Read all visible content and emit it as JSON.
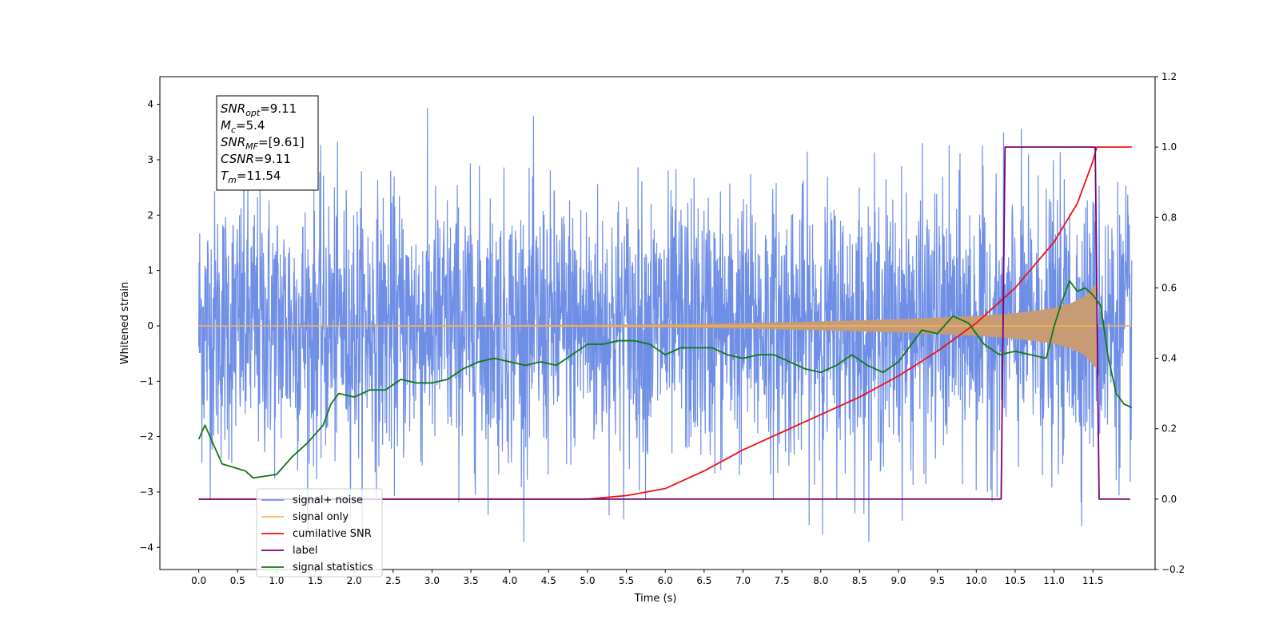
{
  "chart_data": {
    "type": "line",
    "xlabel": "Time (s)",
    "ylabel": "Whitened strain",
    "xlim": [
      -0.5,
      12.3
    ],
    "ylim": [
      -4.4,
      4.5
    ],
    "y2lim": [
      -0.2,
      1.2
    ],
    "x_ticks": [
      "0.0",
      "0.5",
      "1.0",
      "1.5",
      "2.0",
      "2.5",
      "3.0",
      "3.5",
      "4.0",
      "4.5",
      "5.0",
      "5.5",
      "6.0",
      "6.5",
      "7.0",
      "7.5",
      "8.0",
      "8.5",
      "9.0",
      "9.5",
      "10.0",
      "10.5",
      "11.0",
      "11.5"
    ],
    "y_ticks": [
      "4",
      "3",
      "2",
      "1",
      "0",
      "−1",
      "−2",
      "−3",
      "−4"
    ],
    "y2_ticks": [
      "1.2",
      "1.0",
      "0.8",
      "0.6",
      "0.4",
      "0.2",
      "0.0",
      "−0.2"
    ],
    "info_box": [
      {
        "base": "SNR",
        "sub": "opt",
        "value": "=9.11"
      },
      {
        "base": "M",
        "sub": "c",
        "value": "=5.4"
      },
      {
        "base": "SNR",
        "sub": "MF",
        "value": "=[9.61]"
      },
      {
        "base": "CSNR",
        "sub": "",
        "value": "=9.11"
      },
      {
        "base": "T",
        "sub": "m",
        "value": "=11.54"
      }
    ],
    "legend_position": "lower-left",
    "colors": {
      "signal_noise": "#6f8ee6",
      "signal_only": "#f2b562",
      "signal_fill": "#c79b74",
      "cumulative_snr": "#ee1111",
      "label": "#770077",
      "statistics": "#107810"
    },
    "series": [
      {
        "name": "signal+ noise",
        "axis": "left",
        "x_range": [
          0.0,
          12.0
        ],
        "amplitude_envelope": [
          -3.9,
          4.1
        ]
      },
      {
        "name": "signal only",
        "axis": "left",
        "x": [
          0.0,
          5.0,
          6.0,
          7.0,
          8.0,
          9.0,
          9.5,
          10.0,
          10.5,
          11.0,
          11.2,
          11.4,
          11.55,
          11.56,
          12.0
        ],
        "y": [
          0.0,
          0.02,
          0.03,
          0.05,
          0.08,
          0.12,
          0.15,
          0.18,
          0.23,
          0.32,
          0.4,
          0.53,
          0.78,
          0.0,
          0.0
        ]
      },
      {
        "name": "cumilative SNR",
        "axis": "right",
        "x": [
          0.0,
          5.0,
          5.5,
          6.0,
          6.5,
          7.0,
          7.5,
          8.0,
          8.5,
          9.0,
          9.5,
          10.0,
          10.5,
          11.0,
          11.3,
          11.5,
          11.55,
          12.0
        ],
        "y": [
          0.0,
          0.0,
          0.01,
          0.03,
          0.08,
          0.14,
          0.19,
          0.24,
          0.29,
          0.35,
          0.42,
          0.5,
          0.6,
          0.73,
          0.84,
          0.96,
          1.0,
          1.0
        ]
      },
      {
        "name": "label",
        "axis": "right",
        "x": [
          0.0,
          10.32,
          10.37,
          11.53,
          11.58,
          11.98
        ],
        "y": [
          0.0,
          0.0,
          1.0,
          1.0,
          0.0,
          0.0
        ]
      },
      {
        "name": "signal statistics",
        "axis": "right",
        "x": [
          0.0,
          0.08,
          0.3,
          0.6,
          0.7,
          1.0,
          1.2,
          1.4,
          1.6,
          1.7,
          1.8,
          2.0,
          2.2,
          2.4,
          2.6,
          2.8,
          3.0,
          3.2,
          3.4,
          3.6,
          3.8,
          4.0,
          4.2,
          4.4,
          4.6,
          4.8,
          5.0,
          5.2,
          5.4,
          5.6,
          5.8,
          6.0,
          6.2,
          6.4,
          6.6,
          6.8,
          7.0,
          7.2,
          7.4,
          7.6,
          7.8,
          8.0,
          8.2,
          8.4,
          8.6,
          8.8,
          9.0,
          9.2,
          9.3,
          9.5,
          9.7,
          9.9,
          10.1,
          10.3,
          10.5,
          10.7,
          10.9,
          11.0,
          11.1,
          11.2,
          11.3,
          11.4,
          11.5,
          11.6,
          11.7,
          11.8,
          11.9,
          12.0
        ],
        "y": [
          0.17,
          0.21,
          0.1,
          0.08,
          0.06,
          0.07,
          0.12,
          0.16,
          0.21,
          0.27,
          0.3,
          0.29,
          0.31,
          0.31,
          0.34,
          0.33,
          0.33,
          0.34,
          0.37,
          0.39,
          0.4,
          0.39,
          0.38,
          0.39,
          0.38,
          0.41,
          0.44,
          0.44,
          0.45,
          0.45,
          0.44,
          0.41,
          0.43,
          0.43,
          0.43,
          0.41,
          0.4,
          0.41,
          0.41,
          0.39,
          0.37,
          0.36,
          0.38,
          0.41,
          0.38,
          0.36,
          0.39,
          0.45,
          0.48,
          0.47,
          0.52,
          0.5,
          0.44,
          0.41,
          0.42,
          0.41,
          0.4,
          0.49,
          0.56,
          0.62,
          0.59,
          0.6,
          0.58,
          0.55,
          0.4,
          0.3,
          0.27,
          0.26
        ]
      }
    ],
    "legend": [
      {
        "label": "signal+ noise",
        "color_key": "signal_noise"
      },
      {
        "label": "signal only",
        "color_key": "signal_only"
      },
      {
        "label": "cumilative SNR",
        "color_key": "cumulative_snr"
      },
      {
        "label": "label",
        "color_key": "label"
      },
      {
        "label": "signal statistics",
        "color_key": "statistics"
      }
    ]
  }
}
